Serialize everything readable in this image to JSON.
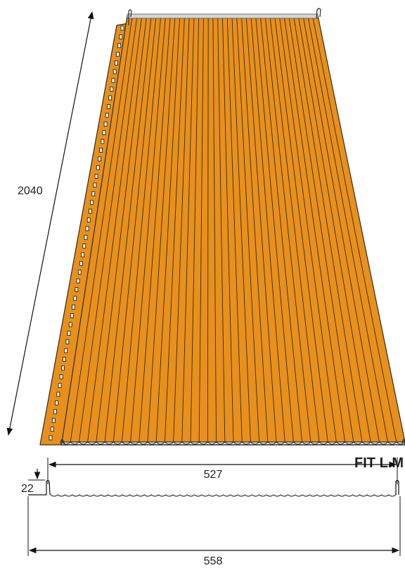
{
  "product_name": "FIT L.M",
  "dimensions": {
    "length": "2040",
    "cover_width": "527",
    "total_width": "558",
    "seam_height": "22"
  },
  "colors": {
    "panel": "#E8901C",
    "rib_line": "#3a2a10",
    "dimension_line": "#111111"
  }
}
